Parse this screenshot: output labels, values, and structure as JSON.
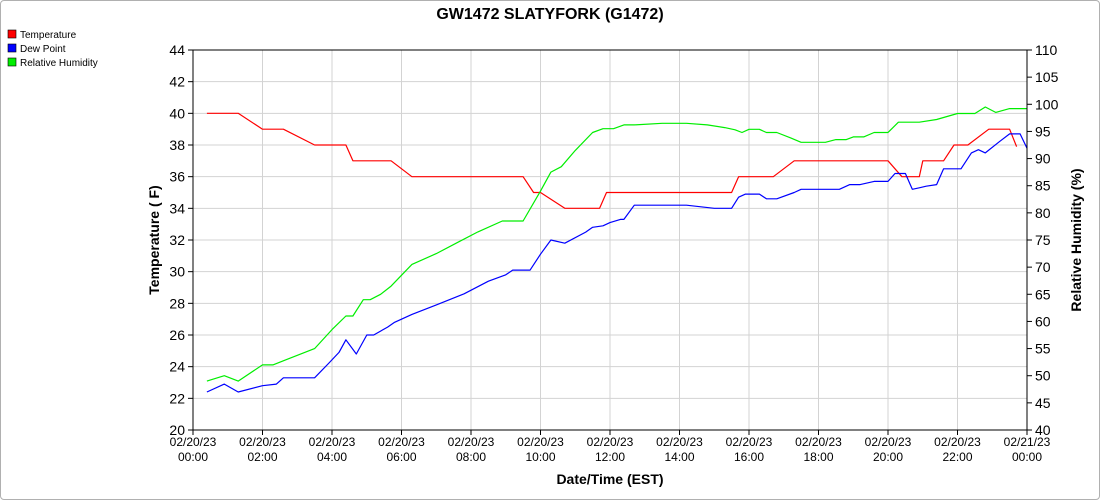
{
  "chart_data": {
    "type": "line",
    "title": "GW1472 SLATYFORK (G1472)",
    "xlabel": "Date/Time (EST)",
    "ylabel": "Temperature ( F)",
    "y2label": "Relative Humidity (%)",
    "xlim": [
      0,
      24
    ],
    "ylim": [
      20,
      44
    ],
    "y2lim": [
      40,
      110
    ],
    "grid": true,
    "legend_position": "top-left",
    "x_ticks": [
      {
        "date": "02/20/23",
        "time": "00:00",
        "hour": 0
      },
      {
        "date": "02/20/23",
        "time": "02:00",
        "hour": 2
      },
      {
        "date": "02/20/23",
        "time": "04:00",
        "hour": 4
      },
      {
        "date": "02/20/23",
        "time": "06:00",
        "hour": 6
      },
      {
        "date": "02/20/23",
        "time": "08:00",
        "hour": 8
      },
      {
        "date": "02/20/23",
        "time": "10:00",
        "hour": 10
      },
      {
        "date": "02/20/23",
        "time": "12:00",
        "hour": 12
      },
      {
        "date": "02/20/23",
        "time": "14:00",
        "hour": 14
      },
      {
        "date": "02/20/23",
        "time": "16:00",
        "hour": 16
      },
      {
        "date": "02/20/23",
        "time": "18:00",
        "hour": 18
      },
      {
        "date": "02/20/23",
        "time": "20:00",
        "hour": 20
      },
      {
        "date": "02/20/23",
        "time": "22:00",
        "hour": 22
      },
      {
        "date": "02/21/23",
        "time": "00:00",
        "hour": 24
      }
    ],
    "y_ticks": [
      20,
      22,
      24,
      26,
      28,
      30,
      32,
      34,
      36,
      38,
      40,
      42,
      44
    ],
    "y2_ticks": [
      40,
      45,
      50,
      55,
      60,
      65,
      70,
      75,
      80,
      85,
      90,
      95,
      100,
      105,
      110
    ],
    "series": [
      {
        "name": "Temperature",
        "axis": "left",
        "color": "#ff0000",
        "points": [
          [
            0.4,
            40
          ],
          [
            1.3,
            40
          ],
          [
            2.0,
            39
          ],
          [
            2.6,
            39
          ],
          [
            3.5,
            38
          ],
          [
            4.4,
            38
          ],
          [
            4.6,
            37
          ],
          [
            5.7,
            37
          ],
          [
            6.3,
            36
          ],
          [
            9.5,
            36
          ],
          [
            9.8,
            35
          ],
          [
            10.0,
            35
          ],
          [
            10.7,
            34
          ],
          [
            11.7,
            34
          ],
          [
            11.9,
            35
          ],
          [
            15.5,
            35
          ],
          [
            15.7,
            36
          ],
          [
            16.7,
            36
          ],
          [
            17.3,
            37
          ],
          [
            20.0,
            37
          ],
          [
            20.4,
            36
          ],
          [
            20.9,
            36
          ],
          [
            21.0,
            37
          ],
          [
            21.6,
            37
          ],
          [
            21.9,
            38
          ],
          [
            22.3,
            38
          ],
          [
            22.9,
            39
          ],
          [
            23.5,
            39
          ],
          [
            23.7,
            37.9
          ]
        ]
      },
      {
        "name": "Dew Point",
        "axis": "left",
        "color": "#0000ff",
        "points": [
          [
            0.4,
            22.4
          ],
          [
            0.9,
            22.9
          ],
          [
            1.3,
            22.4
          ],
          [
            2.0,
            22.8
          ],
          [
            2.4,
            22.9
          ],
          [
            2.6,
            23.3
          ],
          [
            3.5,
            23.3
          ],
          [
            3.9,
            24.2
          ],
          [
            4.2,
            24.9
          ],
          [
            4.4,
            25.7
          ],
          [
            4.7,
            24.8
          ],
          [
            5.0,
            26
          ],
          [
            5.2,
            26
          ],
          [
            5.6,
            26.5
          ],
          [
            5.8,
            26.8
          ],
          [
            6.3,
            27.3
          ],
          [
            7.0,
            27.9
          ],
          [
            7.8,
            28.6
          ],
          [
            8.5,
            29.4
          ],
          [
            9.0,
            29.8
          ],
          [
            9.2,
            30.1
          ],
          [
            9.7,
            30.1
          ],
          [
            10.0,
            31.1
          ],
          [
            10.3,
            32
          ],
          [
            10.7,
            31.8
          ],
          [
            11.3,
            32.5
          ],
          [
            11.5,
            32.8
          ],
          [
            11.8,
            32.9
          ],
          [
            12.0,
            33.1
          ],
          [
            12.3,
            33.3
          ],
          [
            12.4,
            33.3
          ],
          [
            12.7,
            34.2
          ],
          [
            14.2,
            34.2
          ],
          [
            15.0,
            34.0
          ],
          [
            15.5,
            34
          ],
          [
            15.7,
            34.7
          ],
          [
            15.9,
            34.9
          ],
          [
            16.3,
            34.9
          ],
          [
            16.5,
            34.6
          ],
          [
            16.8,
            34.6
          ],
          [
            17.3,
            35
          ],
          [
            17.5,
            35.2
          ],
          [
            18.2,
            35.2
          ],
          [
            18.6,
            35.2
          ],
          [
            18.9,
            35.5
          ],
          [
            19.2,
            35.5
          ],
          [
            19.6,
            35.7
          ],
          [
            20.0,
            35.7
          ],
          [
            20.2,
            36.2
          ],
          [
            20.5,
            36.2
          ],
          [
            20.7,
            35.2
          ],
          [
            20.9,
            35.3
          ],
          [
            21.1,
            35.4
          ],
          [
            21.4,
            35.5
          ],
          [
            21.6,
            36.5
          ],
          [
            21.9,
            36.5
          ],
          [
            22.1,
            36.5
          ],
          [
            22.4,
            37.5
          ],
          [
            22.6,
            37.7
          ],
          [
            22.8,
            37.5
          ],
          [
            23.2,
            38.2
          ],
          [
            23.5,
            38.7
          ],
          [
            23.8,
            38.7
          ],
          [
            24.0,
            37.8
          ]
        ]
      },
      {
        "name": "Relative Humidity",
        "axis": "right",
        "color": "#00ee00",
        "points": [
          [
            0.4,
            49
          ],
          [
            0.9,
            50
          ],
          [
            1.3,
            49
          ],
          [
            2.0,
            52
          ],
          [
            2.3,
            52
          ],
          [
            2.7,
            53
          ],
          [
            3.5,
            55
          ],
          [
            4.0,
            58.5
          ],
          [
            4.4,
            61
          ],
          [
            4.6,
            61
          ],
          [
            4.9,
            64
          ],
          [
            5.1,
            64
          ],
          [
            5.4,
            65
          ],
          [
            5.7,
            66.5
          ],
          [
            6.3,
            70.5
          ],
          [
            7.0,
            72.5
          ],
          [
            7.6,
            74.5
          ],
          [
            8.2,
            76.5
          ],
          [
            8.9,
            78.5
          ],
          [
            9.5,
            78.5
          ],
          [
            10.0,
            84
          ],
          [
            10.3,
            87.5
          ],
          [
            10.6,
            88.5
          ],
          [
            11.0,
            91.5
          ],
          [
            11.5,
            94.8
          ],
          [
            11.8,
            95.5
          ],
          [
            12.1,
            95.5
          ],
          [
            12.4,
            96.2
          ],
          [
            12.7,
            96.2
          ],
          [
            13.5,
            96.5
          ],
          [
            14.2,
            96.5
          ],
          [
            14.8,
            96.2
          ],
          [
            15.3,
            95.7
          ],
          [
            15.6,
            95.3
          ],
          [
            15.8,
            94.8
          ],
          [
            16.0,
            95.4
          ],
          [
            16.3,
            95.4
          ],
          [
            16.5,
            94.8
          ],
          [
            16.8,
            94.8
          ],
          [
            17.2,
            93.8
          ],
          [
            17.5,
            93
          ],
          [
            17.9,
            93
          ],
          [
            18.2,
            93
          ],
          [
            18.5,
            93.5
          ],
          [
            18.8,
            93.5
          ],
          [
            19.0,
            94
          ],
          [
            19.3,
            94
          ],
          [
            19.6,
            94.8
          ],
          [
            20.0,
            94.8
          ],
          [
            20.3,
            96.7
          ],
          [
            20.9,
            96.7
          ],
          [
            21.4,
            97.2
          ],
          [
            22.0,
            98.3
          ],
          [
            22.5,
            98.3
          ],
          [
            22.8,
            99.5
          ],
          [
            23.1,
            98.5
          ],
          [
            23.5,
            99.2
          ],
          [
            24.0,
            99.2
          ]
        ]
      }
    ]
  }
}
